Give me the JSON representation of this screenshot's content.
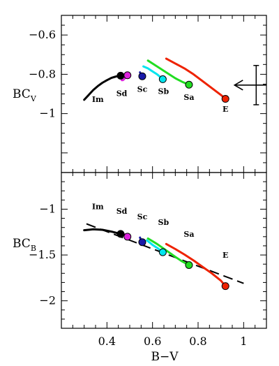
{
  "chart_data": [
    {
      "type": "line",
      "panel": "top",
      "ylabel": "BC",
      "ylabel_sub": "V",
      "xlim": [
        0.2,
        1.1
      ],
      "ylim": [
        -1.3,
        -0.5
      ],
      "y_inverted": true,
      "yticks": [
        -1,
        -0.8,
        -0.6
      ],
      "ytick_labels": [
        "−1",
        "−0.8",
        "−0.6"
      ],
      "series": [
        {
          "color": "#000000",
          "marker_color": "#000000",
          "x": [
            0.3,
            0.32,
            0.34,
            0.36,
            0.38,
            0.4,
            0.42,
            0.44,
            0.46
          ],
          "y": [
            -0.93,
            -0.905,
            -0.88,
            -0.86,
            -0.843,
            -0.83,
            -0.818,
            -0.811,
            -0.807
          ],
          "marker": {
            "x": 0.46,
            "y": -0.807
          }
        },
        {
          "color": "#dd22dd",
          "marker_color": "#dd22dd",
          "x": [
            0.465,
            0.47,
            0.475,
            0.48,
            0.49
          ],
          "y": [
            -0.83,
            -0.83,
            -0.825,
            -0.818,
            -0.805
          ],
          "marker": {
            "x": 0.49,
            "y": -0.805
          }
        },
        {
          "color": "#1a1aa8",
          "marker_color": "#1a1aa8",
          "x": [
            0.545,
            0.55,
            0.555
          ],
          "y": [
            -0.79,
            -0.8,
            -0.81
          ],
          "marker": {
            "x": 0.555,
            "y": -0.81
          }
        },
        {
          "color": "#00e5ee",
          "marker_color": "#00e5ee",
          "x": [
            0.56,
            0.58,
            0.6,
            0.62,
            0.645
          ],
          "y": [
            -0.76,
            -0.77,
            -0.785,
            -0.8,
            -0.825
          ],
          "marker": {
            "x": 0.645,
            "y": -0.825
          }
        },
        {
          "color": "#22dd22",
          "marker_color": "#22dd22",
          "x": [
            0.58,
            0.62,
            0.66,
            0.7,
            0.73,
            0.76
          ],
          "y": [
            -0.73,
            -0.76,
            -0.79,
            -0.82,
            -0.838,
            -0.853
          ],
          "marker": {
            "x": 0.76,
            "y": -0.853
          }
        },
        {
          "color": "#ee2200",
          "marker_color": "#ee2200",
          "x": [
            0.66,
            0.7,
            0.74,
            0.78,
            0.82,
            0.86,
            0.9,
            0.92
          ],
          "y": [
            -0.72,
            -0.745,
            -0.77,
            -0.8,
            -0.835,
            -0.87,
            -0.905,
            -0.925
          ],
          "marker": {
            "x": 0.92,
            "y": -0.925
          }
        }
      ],
      "type_labels": [
        {
          "text": "Im",
          "x": 0.36,
          "y": -0.94
        },
        {
          "text": "Sd",
          "x": 0.465,
          "y": -0.91
        },
        {
          "text": "Sc",
          "x": 0.555,
          "y": -0.89
        },
        {
          "text": "Sb",
          "x": 0.648,
          "y": -0.9
        },
        {
          "text": "Sa",
          "x": 0.76,
          "y": -0.93
        },
        {
          "text": "E",
          "x": 0.92,
          "y": -0.99
        }
      ],
      "arrow": {
        "x_from": 1.1,
        "x_to": 0.96,
        "y": -0.855
      },
      "errorbar": {
        "x": 1.055,
        "y_low": -0.955,
        "y_high": -0.755
      }
    },
    {
      "type": "line",
      "panel": "bottom",
      "xlabel": "B−V",
      "ylabel": "BC",
      "ylabel_sub": "B",
      "xlim": [
        0.2,
        1.1
      ],
      "ylim": [
        -2.3,
        -0.6
      ],
      "y_inverted": true,
      "xticks": [
        0.4,
        0.6,
        0.8,
        1
      ],
      "xtick_labels": [
        "0.4",
        "0.6",
        "0.8",
        "1"
      ],
      "yticks": [
        -2,
        -1.5,
        -1
      ],
      "ytick_labels": [
        "−2",
        "−1.5",
        "−1"
      ],
      "series": [
        {
          "color": "#000000",
          "marker_color": "#000000",
          "x": [
            0.3,
            0.34,
            0.38,
            0.42,
            0.46
          ],
          "y": [
            -1.23,
            -1.22,
            -1.225,
            -1.245,
            -1.27
          ],
          "marker": {
            "x": 0.46,
            "y": -1.27
          }
        },
        {
          "color": "#dd22dd",
          "marker_color": "#dd22dd",
          "x": [
            0.465,
            0.475,
            0.49
          ],
          "y": [
            -1.26,
            -1.27,
            -1.3
          ],
          "marker": {
            "x": 0.49,
            "y": -1.3
          }
        },
        {
          "color": "#1a1aa8",
          "marker_color": "#1a1aa8",
          "x": [
            0.545,
            0.55,
            0.555
          ],
          "y": [
            -1.31,
            -1.34,
            -1.36
          ],
          "marker": {
            "x": 0.555,
            "y": -1.36
          }
        },
        {
          "color": "#00e5ee",
          "marker_color": "#00e5ee",
          "x": [
            0.575,
            0.6,
            0.625,
            0.645
          ],
          "y": [
            -1.34,
            -1.39,
            -1.43,
            -1.47
          ],
          "marker": {
            "x": 0.645,
            "y": -1.47
          }
        },
        {
          "color": "#22dd22",
          "marker_color": "#22dd22",
          "x": [
            0.58,
            0.62,
            0.66,
            0.7,
            0.73,
            0.76
          ],
          "y": [
            -1.32,
            -1.38,
            -1.45,
            -1.52,
            -1.57,
            -1.61
          ],
          "marker": {
            "x": 0.76,
            "y": -1.61
          }
        },
        {
          "color": "#ee2200",
          "marker_color": "#ee2200",
          "x": [
            0.66,
            0.7,
            0.74,
            0.78,
            0.82,
            0.86,
            0.9,
            0.92
          ],
          "y": [
            -1.38,
            -1.435,
            -1.495,
            -1.56,
            -1.63,
            -1.7,
            -1.78,
            -1.84
          ],
          "marker": {
            "x": 0.92,
            "y": -1.84
          }
        }
      ],
      "dashed_fit": {
        "color": "#000000",
        "x": [
          0.31,
          1.0
        ],
        "y": [
          -1.16,
          -1.81
        ]
      },
      "type_labels": [
        {
          "text": "Im",
          "x": 0.36,
          "y": -1.0
        },
        {
          "text": "Sd",
          "x": 0.465,
          "y": -1.05
        },
        {
          "text": "Sc",
          "x": 0.555,
          "y": -1.11
        },
        {
          "text": "Sb",
          "x": 0.648,
          "y": -1.17
        },
        {
          "text": "Sa",
          "x": 0.76,
          "y": -1.3
        },
        {
          "text": "E",
          "x": 0.92,
          "y": -1.53
        }
      ]
    }
  ]
}
